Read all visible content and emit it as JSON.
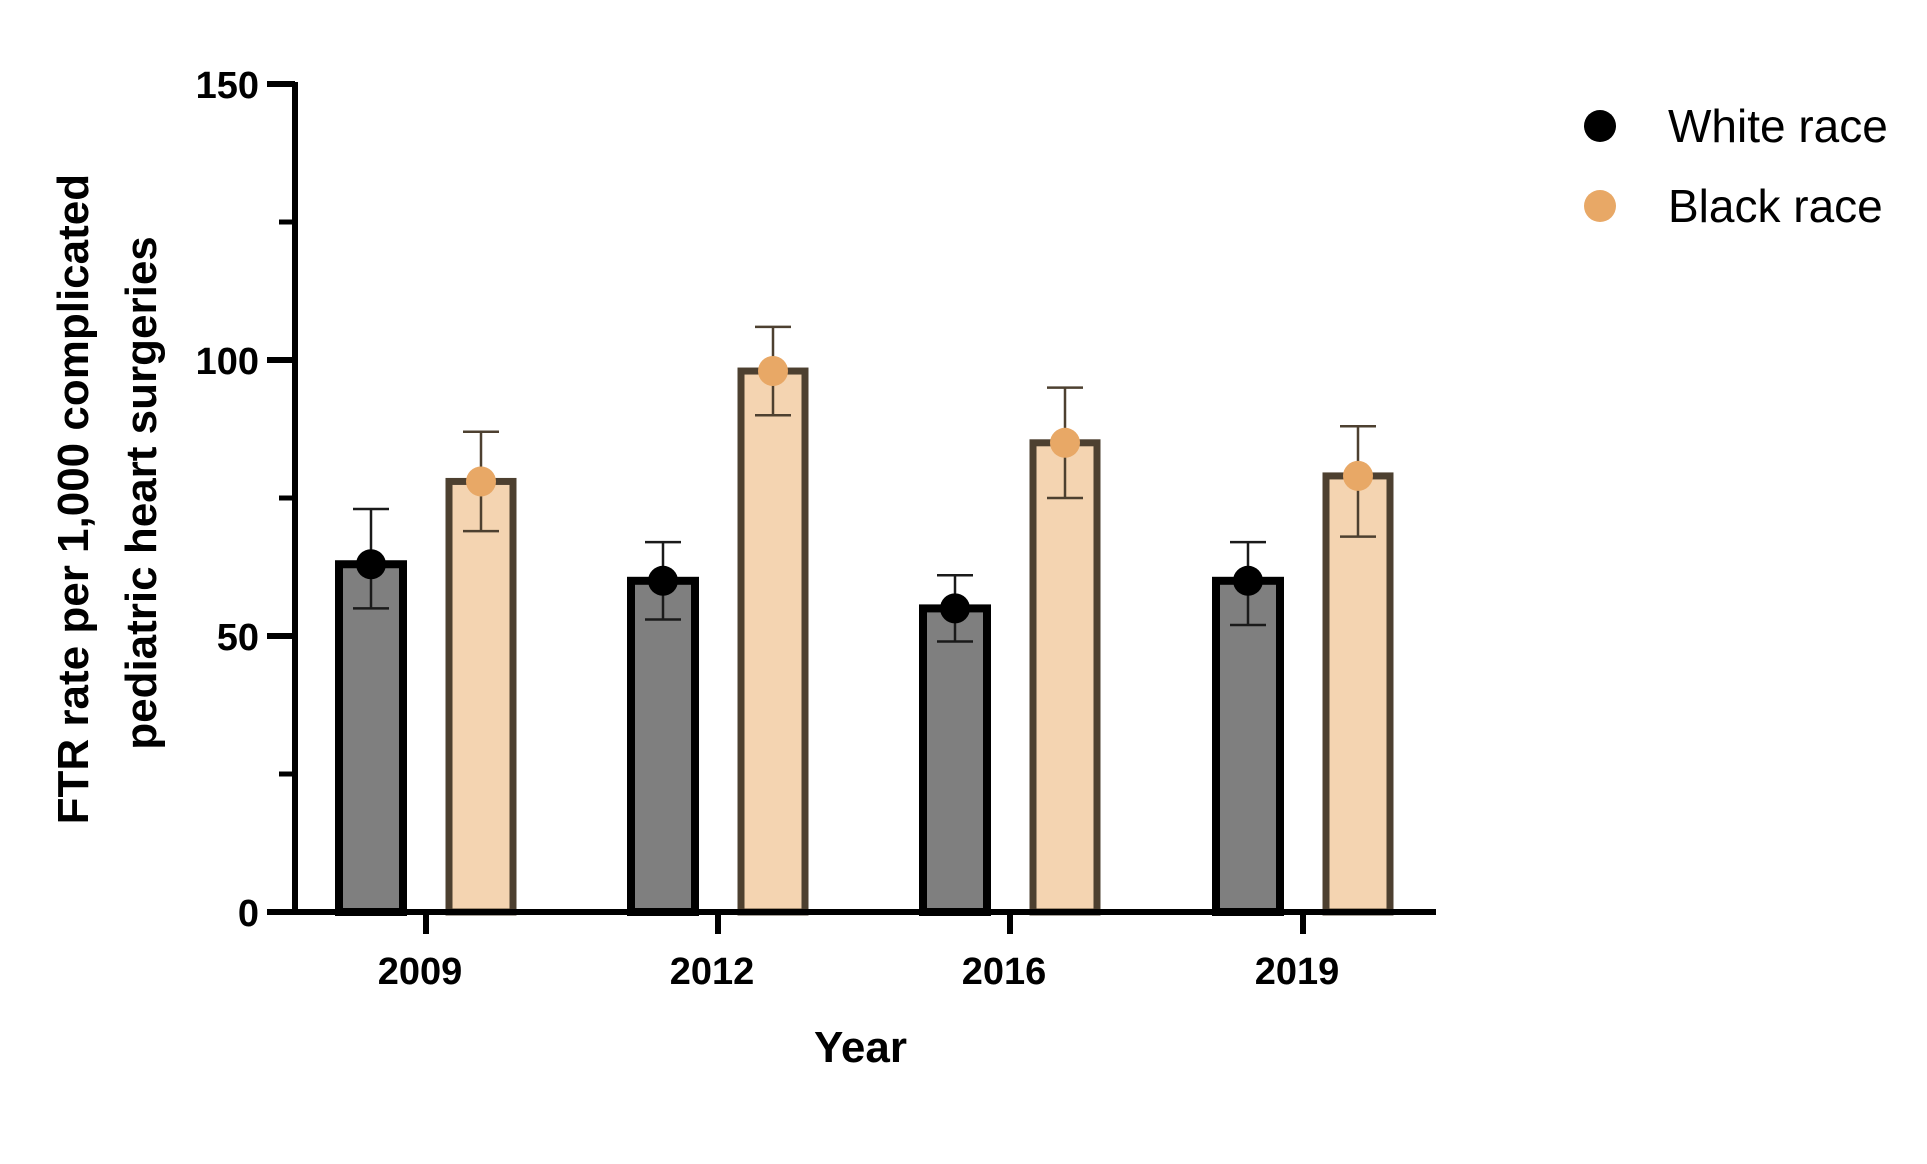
{
  "chart_data": {
    "type": "bar",
    "title": "",
    "xlabel": "Year",
    "ylabel": [
      "FTR rate per 1,000 complicated",
      "pediatric heart surgeries"
    ],
    "categories": [
      "2009",
      "2012",
      "2016",
      "2019"
    ],
    "ylim": [
      0,
      150
    ],
    "yticks": [
      0,
      50,
      100,
      150
    ],
    "y_minor_ticks": [
      25,
      75,
      125
    ],
    "grid": false,
    "legend_position": "top-right",
    "series": [
      {
        "name": "White race",
        "values": [
          63,
          60,
          55,
          60
        ],
        "err_low": [
          55,
          53,
          49,
          52
        ],
        "err_high": [
          73,
          67,
          61,
          67
        ],
        "bar_fill": "#7f7f7f",
        "bar_stroke": "#000000",
        "marker_color": "#000000"
      },
      {
        "name": "Black race",
        "values": [
          78,
          98,
          85,
          79
        ],
        "err_low": [
          69,
          90,
          75,
          68
        ],
        "err_high": [
          87,
          106,
          95,
          88
        ],
        "bar_fill": "#f4d4b1",
        "bar_stroke": "#4d4030",
        "marker_color": "#e8a866"
      }
    ]
  }
}
